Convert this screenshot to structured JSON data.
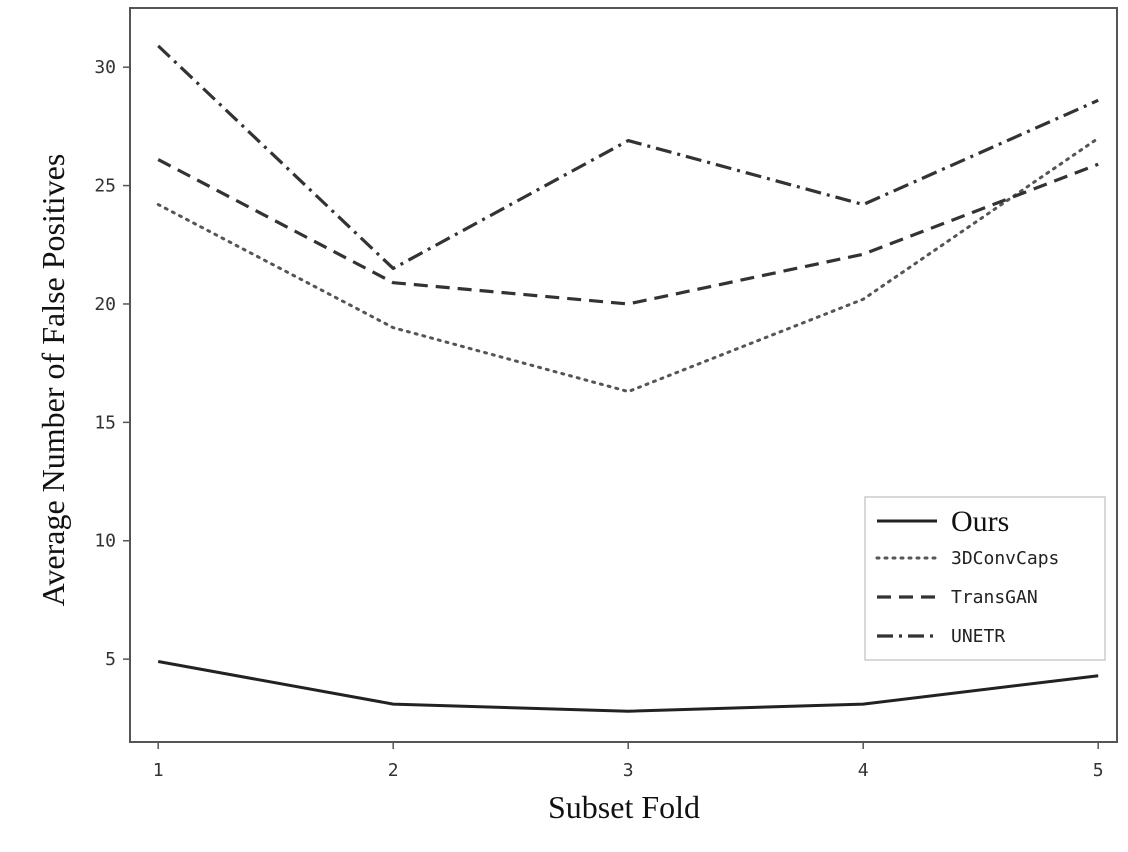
{
  "chart_data": {
    "type": "line",
    "xlabel": "Subset Fold",
    "ylabel": "Average Number of False Positives",
    "x": [
      1,
      2,
      3,
      4,
      5
    ],
    "xticks": [
      "1",
      "2",
      "3",
      "4",
      "5"
    ],
    "yticks": [
      "5",
      "10",
      "15",
      "20",
      "25",
      "30"
    ],
    "ylim": [
      1.5,
      32.5
    ],
    "xlim": [
      0.88,
      5.08
    ],
    "grid": false,
    "legend_position": "lower-right",
    "series": [
      {
        "name": "Ours",
        "style": "solid",
        "color": "#222222",
        "values": [
          4.9,
          3.1,
          2.8,
          3.1,
          4.3
        ]
      },
      {
        "name": "3DConvCaps",
        "style": "dotted",
        "color": "#555555",
        "values": [
          24.2,
          19.0,
          16.3,
          20.2,
          27.0
        ]
      },
      {
        "name": "TransGAN",
        "style": "dashed",
        "color": "#333333",
        "values": [
          26.1,
          20.9,
          20.0,
          22.1,
          25.9
        ]
      },
      {
        "name": "UNETR",
        "style": "dashdot",
        "color": "#333333",
        "values": [
          30.9,
          21.5,
          26.9,
          24.2,
          28.6
        ]
      }
    ]
  }
}
